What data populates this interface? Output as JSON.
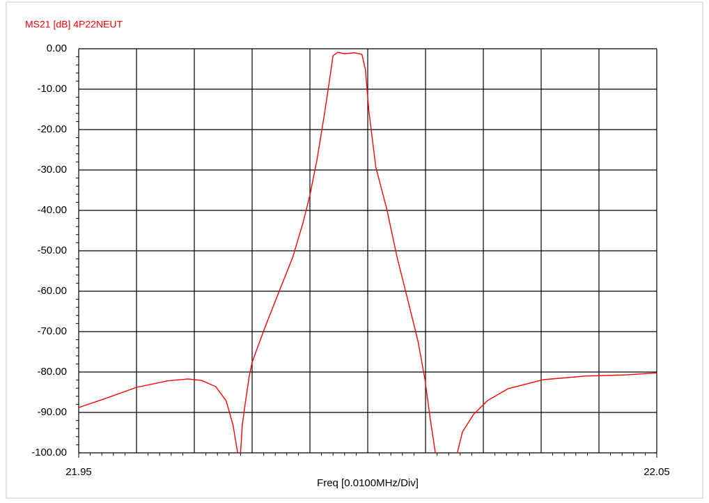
{
  "chart_data": {
    "type": "line",
    "title": "MS21 [dB] 4P22NEUT",
    "xlabel": "Freq [0.0100MHz/Div]",
    "color": "#ff0000",
    "x": [
      21.95,
      21.9545,
      21.96,
      21.9653,
      21.9689,
      21.9713,
      21.9737,
      21.9755,
      21.9767,
      21.9775,
      21.9777,
      21.978,
      21.9783,
      21.9788,
      21.9795,
      21.98,
      21.9822,
      21.9846,
      21.987,
      21.9888,
      21.99,
      21.9912,
      21.9924,
      21.9933,
      21.994,
      21.9948,
      21.996,
      21.9978,
      21.999,
      21.9996,
      22.0002,
      22.0014,
      22.0033,
      22.0051,
      22.0069,
      22.0087,
      22.0099,
      22.0108,
      22.0117,
      22.013,
      22.0155,
      22.0164,
      22.0183,
      22.0207,
      22.0243,
      22.0304,
      22.0376,
      22.0448,
      22.05
    ],
    "values": [
      -88.8,
      -86.6,
      -83.8,
      -82.2,
      -81.7,
      -82.1,
      -83.6,
      -87.1,
      -93.1,
      -100,
      null,
      -100,
      -93.1,
      -87.9,
      -81.0,
      -77.6,
      -69.0,
      -60.3,
      -51.7,
      -43.1,
      -36.2,
      -27.6,
      -17.2,
      -8.6,
      -1.7,
      -0.9,
      -1.2,
      -1.0,
      -1.4,
      -5.2,
      -15.5,
      -29.3,
      -39.7,
      -51.7,
      -62.0,
      -72.4,
      -81.9,
      -91.4,
      -100,
      null,
      -100,
      -94.8,
      -90.5,
      -87.1,
      -84.1,
      -81.9,
      -81.0,
      -80.7,
      -80.2
    ],
    "xlim": [
      21.95,
      22.05
    ],
    "ylim": [
      -100,
      0
    ],
    "xticks": [
      21.95,
      22.05
    ],
    "xgrid": [
      21.95,
      21.96,
      21.97,
      21.98,
      21.99,
      22.0,
      22.01,
      22.02,
      22.03,
      22.04,
      22.05
    ],
    "yticks": [
      {
        "value": 0,
        "label": "0.00"
      },
      {
        "value": -10,
        "label": "-10.00"
      },
      {
        "value": -20,
        "label": "-20.00"
      },
      {
        "value": -30,
        "label": "-30.00"
      },
      {
        "value": -40,
        "label": "-40.00"
      },
      {
        "value": -50,
        "label": "-50.00"
      },
      {
        "value": -60,
        "label": "-60.00"
      },
      {
        "value": -70,
        "label": "-70.00"
      },
      {
        "value": -80,
        "label": "-80.00"
      },
      {
        "value": -90,
        "label": "-90.00"
      },
      {
        "value": -100,
        "label": "-100.00"
      }
    ],
    "grid": true
  }
}
